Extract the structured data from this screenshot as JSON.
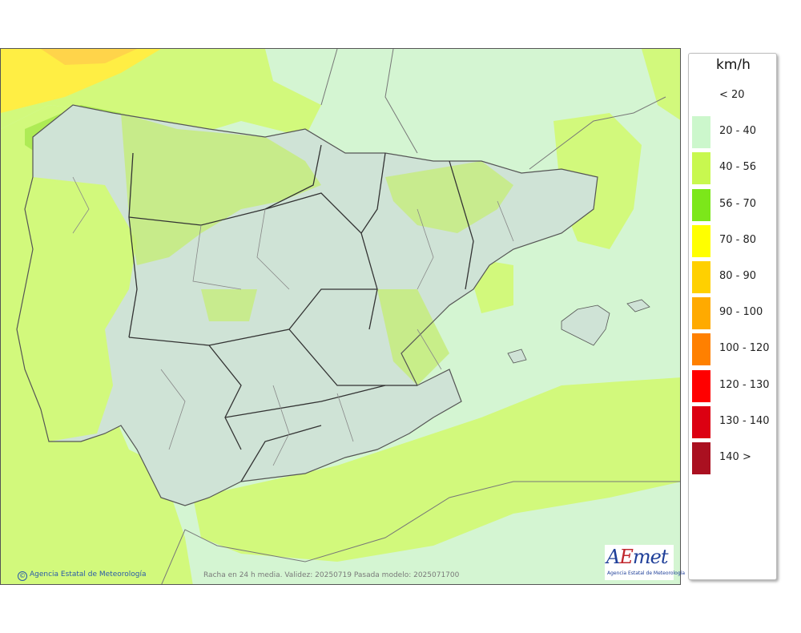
{
  "legend": {
    "unit": "km/h",
    "items": [
      {
        "label": "< 20",
        "color": "#ffffff"
      },
      {
        "label": "20 - 40",
        "color": "#ccf7cc"
      },
      {
        "label": "40 - 56",
        "color": "#c8f84f"
      },
      {
        "label": "56 - 70",
        "color": "#7ce71a"
      },
      {
        "label": "70 - 80",
        "color": "#ffff00"
      },
      {
        "label": "80 - 90",
        "color": "#ffd000"
      },
      {
        "label": "90 - 100",
        "color": "#ffaa00"
      },
      {
        "label": "100 - 120",
        "color": "#ff8000"
      },
      {
        "label": "120 - 130",
        "color": "#ff0000"
      },
      {
        "label": "130 - 140",
        "color": "#dc0012"
      },
      {
        "label": "140 >",
        "color": "#aa1020"
      }
    ]
  },
  "map": {
    "copyright": "Agencia Estatal de Meteorología",
    "copyright_symbol": "©",
    "caption": "Racha en 24 h media. Validez: 20250719 Pasada modelo: 2025071700"
  },
  "logo": {
    "word_a": "A",
    "word_e": "E",
    "word_rest": "met",
    "subtitle": "Agencia Estatal de Meteorología"
  },
  "colors": {
    "sea_light": "#d4f5d2",
    "zone_40_56": "#d2f97c",
    "zone_56_70": "#aeeb55",
    "zone_70_80": "#ffee44",
    "zone_80_90": "#ffd44a",
    "land_relief": "#cfe3d6",
    "borders": "#333333"
  }
}
